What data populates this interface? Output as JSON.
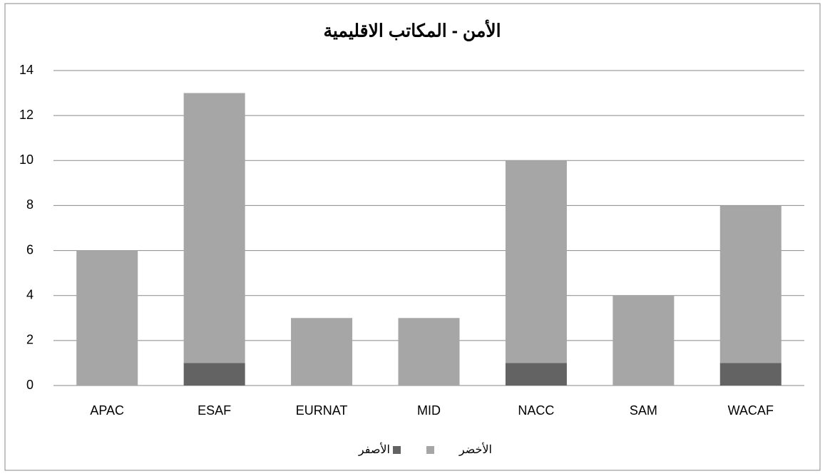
{
  "chart_data": {
    "type": "bar",
    "stacked": true,
    "title": "الأمن - المكاتب الاقليمية",
    "categories": [
      "APAC",
      "ESAF",
      "EURNAT",
      "MID",
      "NACC",
      "SAM",
      "WACAF"
    ],
    "series": [
      {
        "name": "الأصفر",
        "color": "#636363",
        "values": [
          0,
          1,
          0,
          0,
          1,
          0,
          1
        ]
      },
      {
        "name": "الأخضر",
        "color": "#a6a6a6",
        "values": [
          6,
          12,
          3,
          3,
          9,
          4,
          7
        ]
      }
    ],
    "ylim": [
      0,
      14
    ],
    "yticks": [
      0,
      2,
      4,
      6,
      8,
      10,
      12,
      14
    ],
    "grid": true,
    "legend": "bottom"
  }
}
